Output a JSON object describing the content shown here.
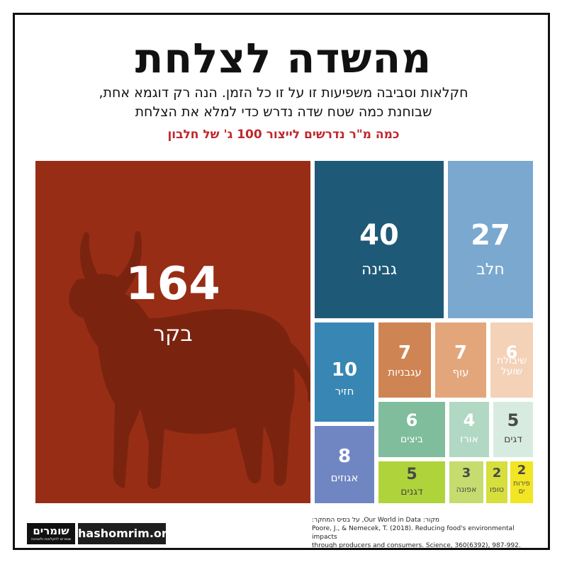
{
  "title": "מהשדה לצלחת",
  "subtitle_lines": [
    "חקלאות וסביבה משפיעות זו על זו כל הזמן. הנה רק דוגמא אחת,",
    "שבוחנת כמה שטח שדה נדרש כדי למלא את הצלחת"
  ],
  "question": "כמה מ\"ר נדרשים לייצור 100 ג' של חלבון",
  "chart_data": {
    "type": "treemap",
    "items": [
      {
        "label": "בקר",
        "value": 164,
        "color": "#982d15"
      },
      {
        "label": "גבינה",
        "value": 40,
        "color": "#1e5a77"
      },
      {
        "label": "חלב",
        "value": 27,
        "color": "#7aa8cf"
      },
      {
        "label": "חזיר",
        "value": 10,
        "color": "#3886b4"
      },
      {
        "label": "אגוזים",
        "value": 8,
        "color": "#6f86c2"
      },
      {
        "label": "עגבניות",
        "value": 7,
        "color": "#cf8453"
      },
      {
        "label": "עוף",
        "value": 7,
        "color": "#e3a67b"
      },
      {
        "label": "שיבולת שועל",
        "value": 6,
        "color": "#f3d2b8"
      },
      {
        "label": "ביצים",
        "value": 6,
        "color": "#7fbd9c"
      },
      {
        "label": "אורז",
        "value": 4,
        "color": "#b1d8c2"
      },
      {
        "label": "דגים",
        "value": 5,
        "color": "#d8ebe1"
      },
      {
        "label": "דגנים",
        "value": 5,
        "color": "#afd33a"
      },
      {
        "label": "אפונה",
        "value": 3,
        "color": "#c6dc6e"
      },
      {
        "label": "טופו",
        "value": 2,
        "color": "#d6df3c"
      },
      {
        "label": "פירות ים",
        "value": 2,
        "color": "#f2e523"
      }
    ]
  },
  "footer": {
    "logo_main": "שומרים",
    "logo_sub": "שומרים לחקלאות ולסביבה",
    "site": "hashomrim.org",
    "source_line1": "מקור: Our World in Data, על בסיס המחקר:",
    "source_line2": "Poore, J., & Nemecek, T. (2018). Reducing food's environmental impacts",
    "source_line3": "through producers and consumers. Science, 360(6392), 987-992."
  }
}
